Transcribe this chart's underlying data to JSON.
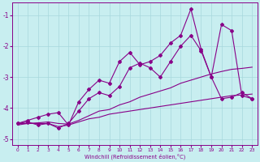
{
  "xlabel": "Windchill (Refroidissement éolien,°C)",
  "bg_color": "#c8eef0",
  "grid_color": "#a8d8dc",
  "line_color": "#880088",
  "ylim": [
    -5.2,
    -0.6
  ],
  "xlim": [
    -0.5,
    23.5
  ],
  "yticks": [
    -5,
    -4,
    -3,
    -2,
    -1
  ],
  "xticks": [
    0,
    1,
    2,
    3,
    4,
    5,
    6,
    7,
    8,
    9,
    10,
    11,
    12,
    13,
    14,
    15,
    16,
    17,
    18,
    19,
    20,
    21,
    22,
    23
  ],
  "s1_x": [
    0,
    1,
    2,
    3,
    4,
    5,
    6,
    7,
    8,
    9,
    10,
    11,
    12,
    13,
    14,
    15,
    16,
    17,
    18,
    19,
    20,
    21,
    22,
    23
  ],
  "s1_y": [
    -4.5,
    -4.5,
    -4.5,
    -4.5,
    -4.6,
    -4.55,
    -4.45,
    -4.35,
    -4.3,
    -4.2,
    -4.15,
    -4.1,
    -4.05,
    -4.0,
    -3.95,
    -3.9,
    -3.85,
    -3.8,
    -3.75,
    -3.7,
    -3.65,
    -3.6,
    -3.58,
    -3.55
  ],
  "s2_x": [
    0,
    1,
    2,
    3,
    4,
    5,
    6,
    7,
    8,
    9,
    10,
    11,
    12,
    13,
    14,
    15,
    16,
    17,
    18,
    19,
    20,
    21,
    22,
    23
  ],
  "s2_y": [
    -4.55,
    -4.5,
    -4.48,
    -4.45,
    -4.5,
    -4.52,
    -4.4,
    -4.25,
    -4.1,
    -4.05,
    -3.9,
    -3.8,
    -3.65,
    -3.55,
    -3.45,
    -3.35,
    -3.2,
    -3.1,
    -3.0,
    -2.9,
    -2.82,
    -2.75,
    -2.72,
    -2.68
  ],
  "s3_x": [
    0,
    1,
    2,
    3,
    4,
    5,
    6,
    7,
    8,
    9,
    10,
    11,
    12,
    13,
    14,
    15,
    16,
    17,
    18,
    19,
    20,
    21,
    22,
    23
  ],
  "s3_y": [
    -4.5,
    -4.45,
    -4.55,
    -4.5,
    -4.65,
    -4.5,
    -4.1,
    -3.7,
    -3.5,
    -3.6,
    -3.3,
    -2.7,
    -2.55,
    -2.7,
    -3.0,
    -2.5,
    -2.0,
    -1.65,
    -2.15,
    -3.0,
    -3.7,
    -3.65,
    -3.5,
    -3.7
  ],
  "s4_x": [
    0,
    1,
    2,
    3,
    4,
    5,
    6,
    7,
    8,
    9,
    10,
    11,
    12,
    13,
    14,
    15,
    16,
    17,
    18,
    19,
    20,
    21,
    22,
    23
  ],
  "s4_y": [
    -4.5,
    -4.4,
    -4.3,
    -4.2,
    -4.15,
    -4.55,
    -3.8,
    -3.4,
    -3.1,
    -3.2,
    -2.5,
    -2.2,
    -2.6,
    -2.5,
    -2.3,
    -1.9,
    -1.65,
    -0.8,
    -2.1,
    -3.0,
    -1.3,
    -1.5,
    -3.6,
    -3.7
  ]
}
